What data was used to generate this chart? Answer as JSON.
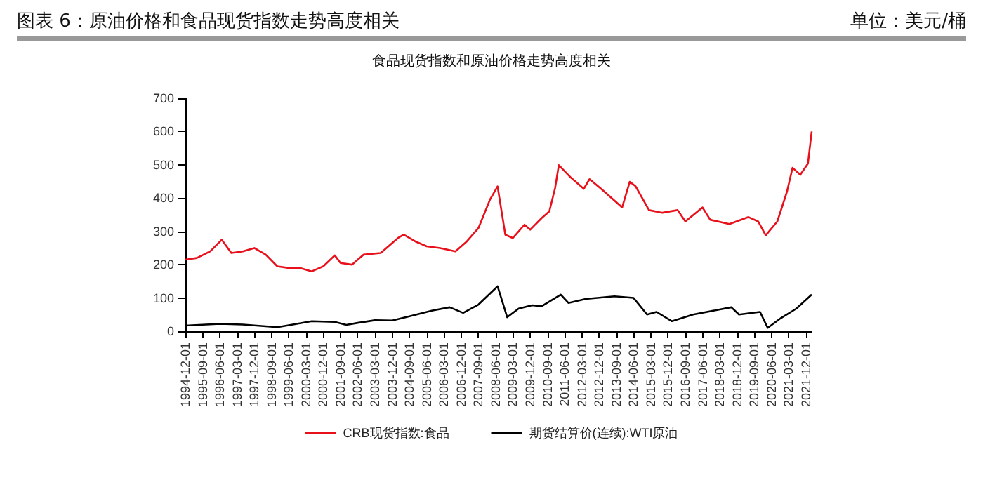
{
  "chart_data": {
    "type": "line",
    "title": "图表 6：原油价格和食品现货指数走势高度相关",
    "subtitle": "食品现货指数和原油价格走势高度相关",
    "annotations": [
      "单位：美元/桶"
    ],
    "xlim": [
      "1994-12-01",
      "2022-03-01"
    ],
    "xticks": [
      "1994-12-01",
      "1995-09-01",
      "1996-06-01",
      "1997-03-01",
      "1997-12-01",
      "1998-09-01",
      "1999-06-01",
      "2000-03-01",
      "2000-12-01",
      "2001-09-01",
      "2002-06-01",
      "2003-03-01",
      "2003-12-01",
      "2004-09-01",
      "2005-06-01",
      "2006-03-01",
      "2006-12-01",
      "2007-09-01",
      "2008-06-01",
      "2009-03-01",
      "2009-12-01",
      "2010-09-01",
      "2011-06-01",
      "2012-03-01",
      "2012-12-01",
      "2013-09-01",
      "2014-06-01",
      "2015-03-01",
      "2015-12-01",
      "2016-09-01",
      "2017-06-01",
      "2018-03-01",
      "2018-12-01",
      "2019-09-01",
      "2020-06-01",
      "2021-03-01",
      "2021-12-01"
    ],
    "ylim": [
      0,
      700
    ],
    "yticks": [
      0,
      100,
      200,
      300,
      400,
      500,
      600,
      700
    ],
    "grid": false,
    "legend": "bottom",
    "marker": "none",
    "series": [
      {
        "name": "CRB现货指数:食品",
        "color": "#e8101a",
        "x": [
          "1994-12",
          "1995-06",
          "1996-01",
          "1996-07",
          "1996-12",
          "1997-06",
          "1997-12",
          "1998-06",
          "1998-12",
          "1999-06",
          "1999-12",
          "2000-06",
          "2000-12",
          "2001-06",
          "2001-09",
          "2002-03",
          "2002-09",
          "2003-06",
          "2004-03",
          "2004-06",
          "2004-12",
          "2005-06",
          "2006-01",
          "2006-09",
          "2007-03",
          "2007-09",
          "2008-03",
          "2008-07",
          "2008-11",
          "2009-03",
          "2009-09",
          "2009-12",
          "2010-06",
          "2010-10",
          "2011-01",
          "2011-03",
          "2011-09",
          "2012-04",
          "2012-07",
          "2013-01",
          "2013-12",
          "2014-04",
          "2014-07",
          "2015-02",
          "2015-09",
          "2016-05",
          "2016-09",
          "2017-06",
          "2017-10",
          "2018-08",
          "2019-06",
          "2019-11",
          "2020-03",
          "2020-09",
          "2021-02",
          "2021-05",
          "2021-09",
          "2022-01",
          "2022-03"
        ],
        "values": [
          215,
          220,
          240,
          275,
          235,
          240,
          250,
          230,
          195,
          190,
          190,
          180,
          195,
          228,
          205,
          200,
          230,
          235,
          280,
          290,
          270,
          255,
          250,
          240,
          270,
          310,
          395,
          435,
          290,
          280,
          320,
          305,
          340,
          360,
          430,
          499,
          463,
          428,
          457,
          428,
          372,
          449,
          436,
          364,
          356,
          364,
          330,
          372,
          335,
          322,
          343,
          330,
          288,
          330,
          419,
          491,
          470,
          504,
          600
        ]
      },
      {
        "name": "期货结算价(连续):WTI原油",
        "color": "#000000",
        "x": [
          "1994-12",
          "1996-06",
          "1997-06",
          "1998-12",
          "1999-06",
          "2000-06",
          "2001-06",
          "2001-12",
          "2002-06",
          "2003-03",
          "2003-12",
          "2004-09",
          "2005-09",
          "2006-06",
          "2007-01",
          "2007-09",
          "2008-07",
          "2008-12",
          "2009-06",
          "2010-01",
          "2010-06",
          "2011-04",
          "2011-08",
          "2012-05",
          "2013-08",
          "2014-06",
          "2015-01",
          "2015-06",
          "2016-02",
          "2017-01",
          "2018-09",
          "2019-01",
          "2019-12",
          "2020-04",
          "2020-11",
          "2021-07",
          "2022-03"
        ],
        "values": [
          17,
          22,
          20,
          12,
          18,
          30,
          28,
          19,
          25,
          33,
          32,
          45,
          62,
          72,
          55,
          80,
          135,
          42,
          68,
          78,
          75,
          110,
          85,
          97,
          105,
          100,
          50,
          58,
          30,
          50,
          72,
          50,
          58,
          10,
          40,
          68,
          110
        ]
      }
    ]
  }
}
